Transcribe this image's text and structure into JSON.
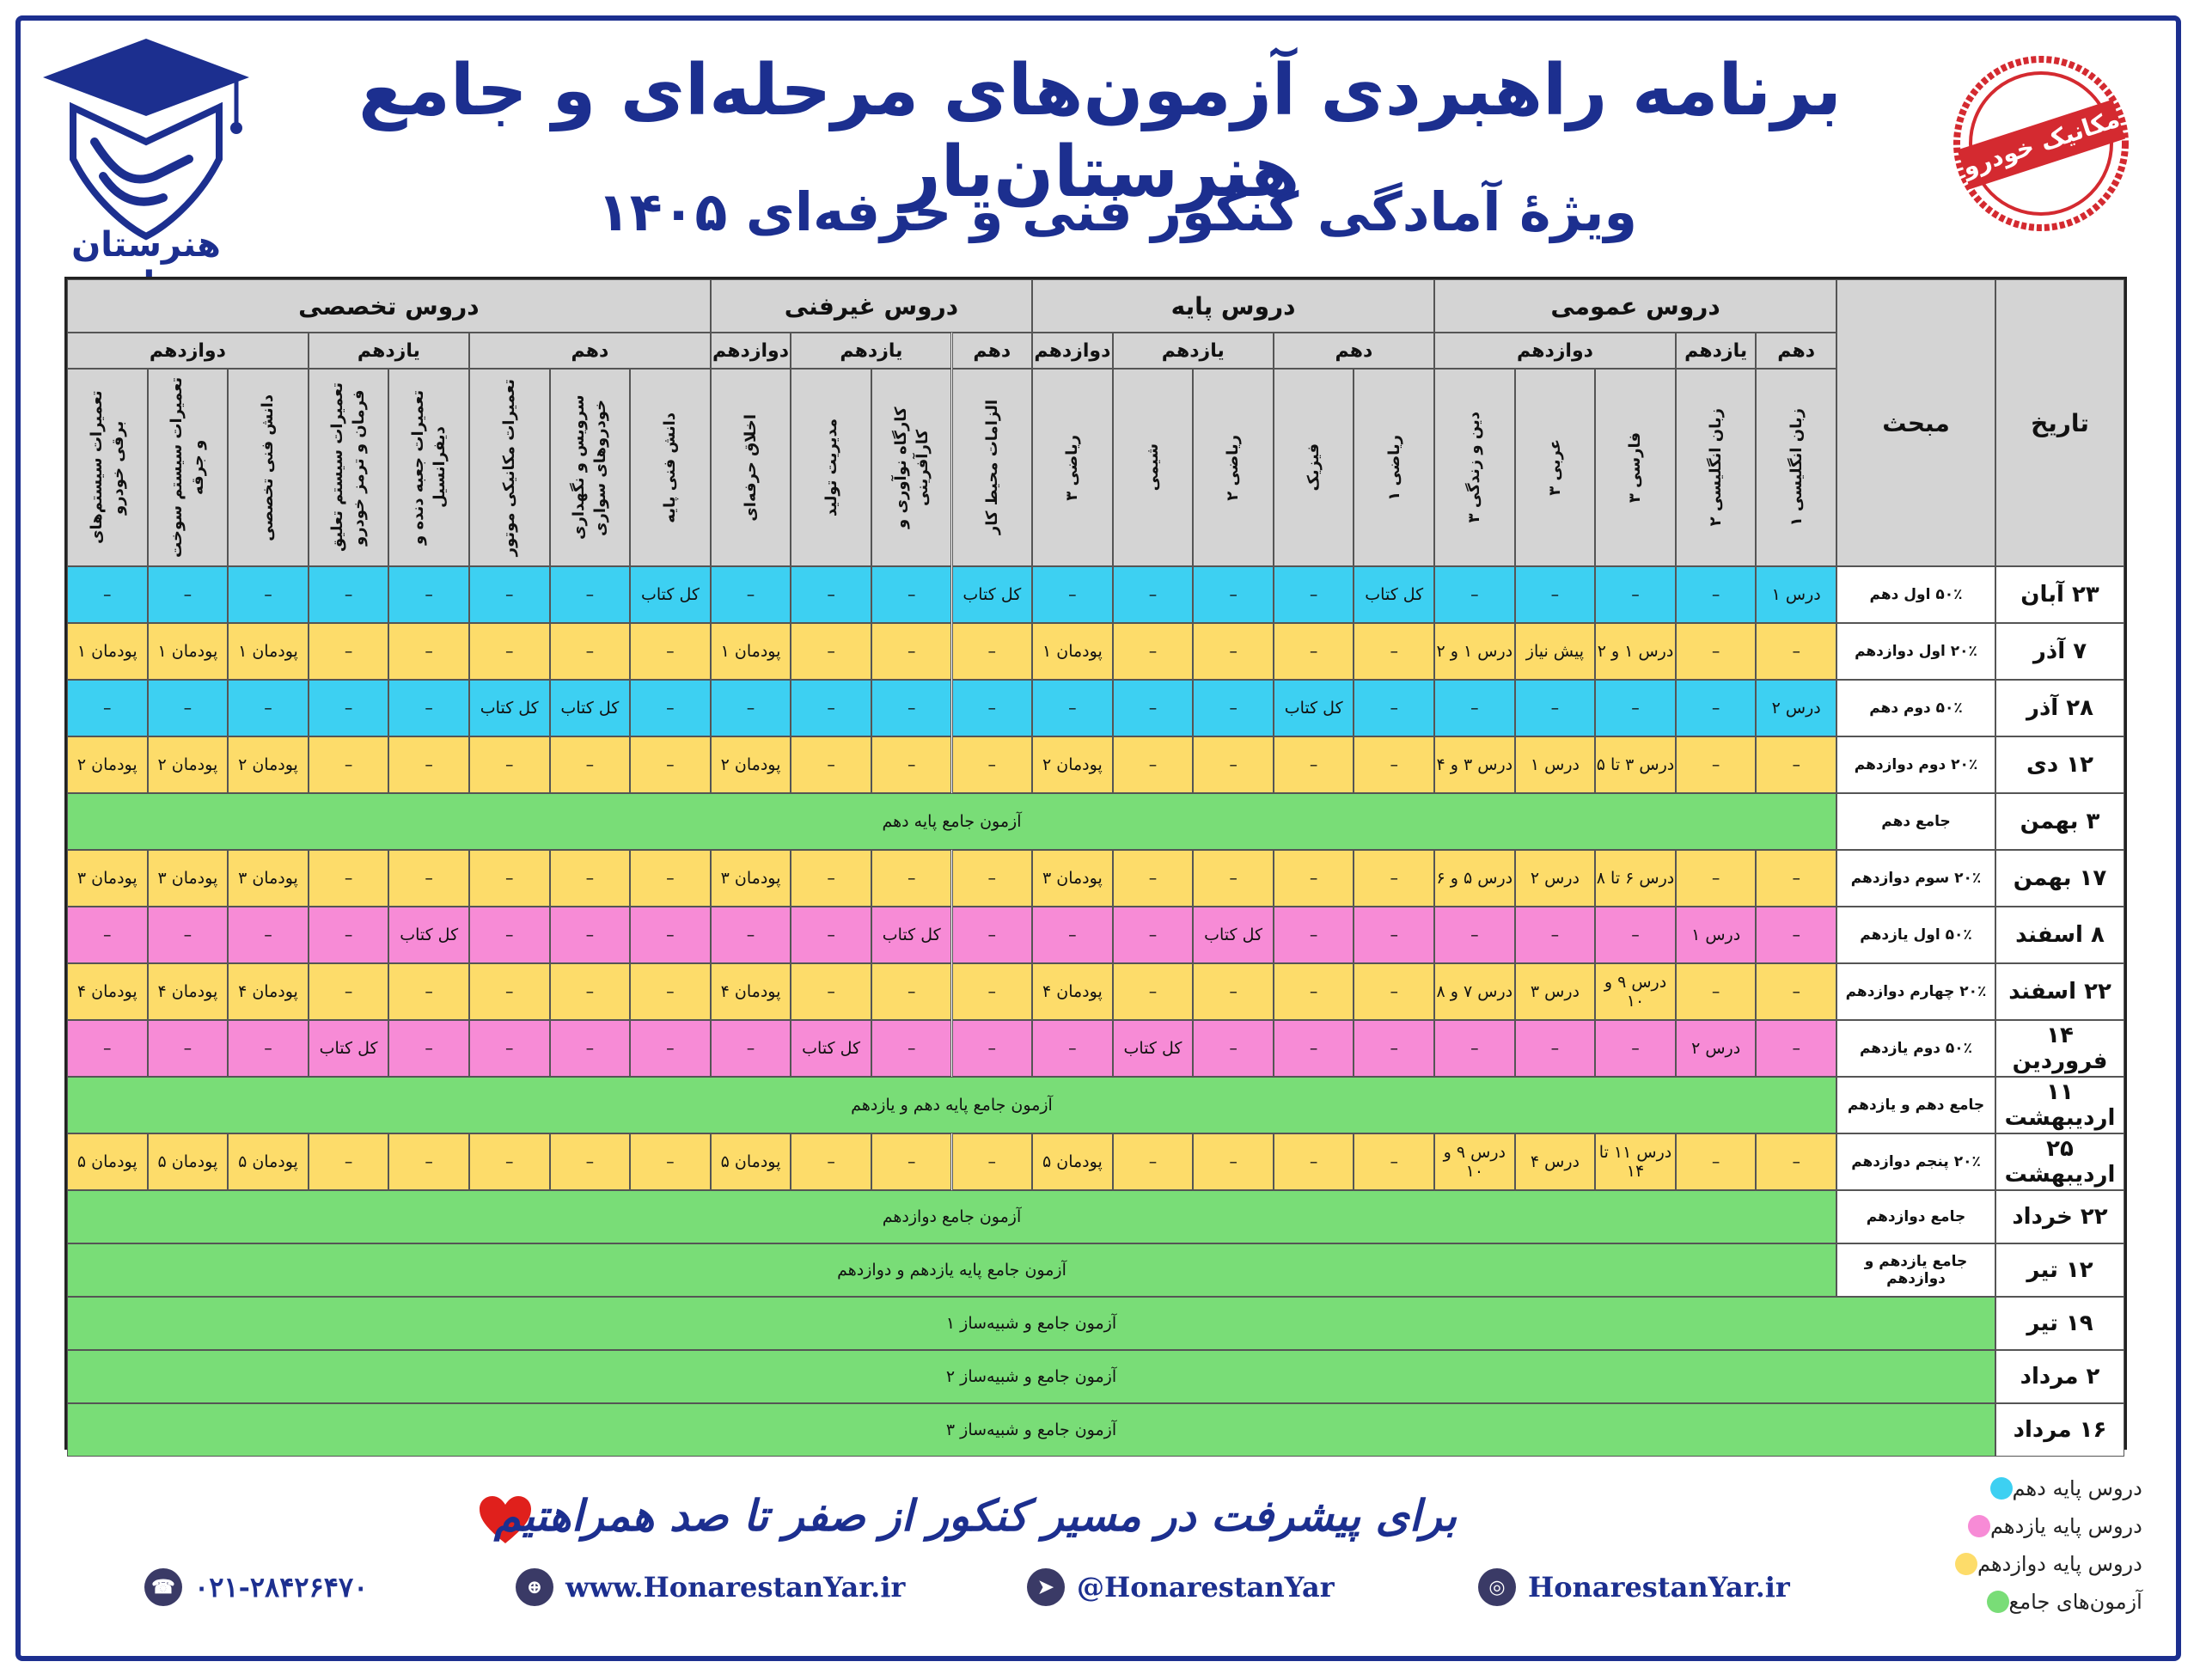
{
  "header": {
    "title": "برنامه راهبردی آزمون‌های مرحله‌ای و جامع هنرستان‌یار",
    "subtitle": "ویژهٔ آمادگی کنکور فنی و حرفه‌ای ۱۴۰۵",
    "logo_text": "هنرستان یار",
    "stamp_text": "مکانیک خودرو"
  },
  "colors": {
    "blue": "#3dd0f2",
    "pink": "#f78bd6",
    "yellow": "#fddc6a",
    "green": "#79dd77",
    "brand": "#1c2f8f"
  },
  "table": {
    "col_date": "تاریخ",
    "col_topic": "مبحث",
    "groups": [
      {
        "label": "دروس عمومی",
        "sub": [
          {
            "label": "دهم",
            "cols": [
              "زبان انگلیسی ۱"
            ]
          },
          {
            "label": "یازدهم",
            "cols": [
              "زبان انگلیسی ۲"
            ]
          },
          {
            "label": "دوازدهم",
            "cols": [
              "فارسی ۳",
              "عربی ۳",
              "دین و زندگی ۳"
            ]
          }
        ]
      },
      {
        "label": "دروس پایه",
        "sub": [
          {
            "label": "دهم",
            "cols": [
              "ریاضی ۱",
              "فیزیک"
            ]
          },
          {
            "label": "یازدهم",
            "cols": [
              "ریاضی ۲",
              "شیمی"
            ]
          },
          {
            "label": "دوازدهم",
            "cols": [
              "ریاضی ۳"
            ]
          }
        ]
      },
      {
        "label": "دروس غیرفنی",
        "sub": [
          {
            "label": "دهم",
            "cols": [
              "الزامات محیط کار"
            ]
          },
          {
            "label": "یازدهم",
            "cols": [
              "کارگاه نوآوری و کارآفرینی",
              "مدیریت تولید"
            ]
          },
          {
            "label": "دوازدهم",
            "cols": [
              "اخلاق حرفه‌ای"
            ]
          }
        ]
      },
      {
        "label": "دروس تخصصی",
        "sub": [
          {
            "label": "دهم",
            "cols": [
              "دانش فنی پایه",
              "سرویس و نگهداری خودروهای سواری",
              "تعمیرات مکانیکی موتور"
            ]
          },
          {
            "label": "یازدهم",
            "cols": [
              "تعمیرات جعبه دنده و دیفرانسیل",
              "تعمیرات سیستم تعلیق فرمان و ترمز خودرو"
            ]
          },
          {
            "label": "دوازدهم",
            "cols": [
              "دانش فنی تخصصی",
              "تعمیرات سیستم سوخت و جرقه",
              "تعمیرات سیستم‌های برقی خودرو"
            ]
          }
        ]
      }
    ],
    "rows": [
      {
        "date": "۲۳ آبان",
        "topic": "۵۰٪ اول دهم",
        "color": "blue",
        "cells": [
          "درس ۱",
          "–",
          "–",
          "–",
          "–",
          "کل کتاب",
          "–",
          "–",
          "–",
          "–",
          "کل کتاب",
          "–",
          "–",
          "–",
          "کل کتاب",
          "–",
          "–",
          "–",
          "–",
          "–",
          "–",
          "–"
        ]
      },
      {
        "date": "۷ آذر",
        "topic": "۲۰٪ اول دوازدهم",
        "color": "yellow",
        "cells": [
          "–",
          "–",
          "درس ۱ و ۲",
          "پیش نیاز",
          "درس ۱ و ۲",
          "–",
          "–",
          "–",
          "–",
          "پودمان ۱",
          "–",
          "–",
          "–",
          "پودمان ۱",
          "–",
          "–",
          "–",
          "–",
          "–",
          "پودمان ۱",
          "پودمان ۱",
          "پودمان ۱"
        ]
      },
      {
        "date": "۲۸ آذر",
        "topic": "۵۰٪ دوم دهم",
        "color": "blue",
        "cells": [
          "درس ۲",
          "–",
          "–",
          "–",
          "–",
          "–",
          "کل کتاب",
          "–",
          "–",
          "–",
          "–",
          "–",
          "–",
          "–",
          "–",
          "کل کتاب",
          "کل کتاب",
          "–",
          "–",
          "–",
          "–",
          "–"
        ]
      },
      {
        "date": "۱۲ دی",
        "topic": "۲۰٪ دوم دوازدهم",
        "color": "yellow",
        "cells": [
          "–",
          "–",
          "درس ۳ تا ۵",
          "درس ۱",
          "درس ۳ و ۴",
          "–",
          "–",
          "–",
          "–",
          "پودمان ۲",
          "–",
          "–",
          "–",
          "پودمان ۲",
          "–",
          "–",
          "–",
          "–",
          "–",
          "پودمان ۲",
          "پودمان ۲",
          "پودمان ۲"
        ]
      },
      {
        "date": "۳ بهمن",
        "topic": "جامع دهم",
        "color": "green",
        "merged": "آزمون جامع پایه دهم"
      },
      {
        "date": "۱۷ بهمن",
        "topic": "۲۰٪ سوم دوازدهم",
        "color": "yellow",
        "cells": [
          "–",
          "–",
          "درس ۶ تا ۸",
          "درس ۲",
          "درس ۵ و ۶",
          "–",
          "–",
          "–",
          "–",
          "پودمان ۳",
          "–",
          "–",
          "–",
          "پودمان ۳",
          "–",
          "–",
          "–",
          "–",
          "–",
          "پودمان ۳",
          "پودمان ۳",
          "پودمان ۳"
        ]
      },
      {
        "date": "۸ اسفند",
        "topic": "۵۰٪ اول یازدهم",
        "color": "pink",
        "cells": [
          "–",
          "درس ۱",
          "–",
          "–",
          "–",
          "–",
          "–",
          "کل کتاب",
          "–",
          "–",
          "–",
          "کل کتاب",
          "–",
          "–",
          "–",
          "–",
          "–",
          "کل کتاب",
          "–",
          "–",
          "–",
          "–"
        ]
      },
      {
        "date": "۲۲ اسفند",
        "topic": "۲۰٪ چهارم دوازدهم",
        "color": "yellow",
        "cells": [
          "–",
          "–",
          "درس ۹ و ۱۰",
          "درس ۳",
          "درس ۷ و ۸",
          "–",
          "–",
          "–",
          "–",
          "پودمان ۴",
          "–",
          "–",
          "–",
          "پودمان ۴",
          "–",
          "–",
          "–",
          "–",
          "–",
          "پودمان ۴",
          "پودمان ۴",
          "پودمان ۴"
        ]
      },
      {
        "date": "۱۴ فروردین",
        "topic": "۵۰٪ دوم یازدهم",
        "color": "pink",
        "cells": [
          "–",
          "درس ۲",
          "–",
          "–",
          "–",
          "–",
          "–",
          "–",
          "کل کتاب",
          "–",
          "–",
          "–",
          "کل کتاب",
          "–",
          "–",
          "–",
          "–",
          "–",
          "کل کتاب",
          "–",
          "–",
          "–"
        ]
      },
      {
        "date": "۱۱ اردیبهشت",
        "topic": "جامع دهم و یازدهم",
        "color": "green",
        "merged": "آزمون جامع پایه دهم و یازدهم"
      },
      {
        "date": "۲۵ اردیبهشت",
        "topic": "۲۰٪ پنجم دوازدهم",
        "color": "yellow",
        "cells": [
          "–",
          "–",
          "درس ۱۱ تا ۱۴",
          "درس ۴",
          "درس ۹ و ۱۰",
          "–",
          "–",
          "–",
          "–",
          "پودمان ۵",
          "–",
          "–",
          "–",
          "پودمان ۵",
          "–",
          "–",
          "–",
          "–",
          "–",
          "پودمان ۵",
          "پودمان ۵",
          "پودمان ۵"
        ]
      },
      {
        "date": "۲۲ خرداد",
        "topic": "جامع دوازدهم",
        "color": "green",
        "merged": "آزمون جامع دوازدهم"
      },
      {
        "date": "۱۲ تیر",
        "topic": "جامع یازدهم و دوازدهم",
        "color": "green",
        "merged": "آزمون جامع پایه یازدهم و دوازدهم"
      },
      {
        "date": "۱۹ تیر",
        "topic": "",
        "color": "green",
        "merged": "آزمون جامع و شبیه‌ساز ۱",
        "full": true
      },
      {
        "date": "۲ مرداد",
        "topic": "",
        "color": "green",
        "merged": "آزمون جامع و شبیه‌ساز ۲",
        "full": true
      },
      {
        "date": "۱۶ مرداد",
        "topic": "",
        "color": "green",
        "merged": "آزمون جامع و شبیه‌ساز ۳",
        "full": true
      }
    ]
  },
  "legend": [
    {
      "label": "دروس پایه دهم",
      "color": "#3dd0f2"
    },
    {
      "label": "دروس پایه یازدهم",
      "color": "#f78bd6"
    },
    {
      "label": "دروس پایه دوازدهم",
      "color": "#fddc6a"
    },
    {
      "label": "آزمون‌های جامع",
      "color": "#79dd77"
    }
  ],
  "slogan": "برای پیشرفت در مسیر کنکور از صفر تا صد همراهتیم",
  "footer": {
    "instagram": "HonarestanYar.ir",
    "telegram": "@HonarestanYar",
    "website": "www.HonarestanYar.ir",
    "phone": "۰۲۱-۲۸۴۲۶۴۷۰"
  }
}
